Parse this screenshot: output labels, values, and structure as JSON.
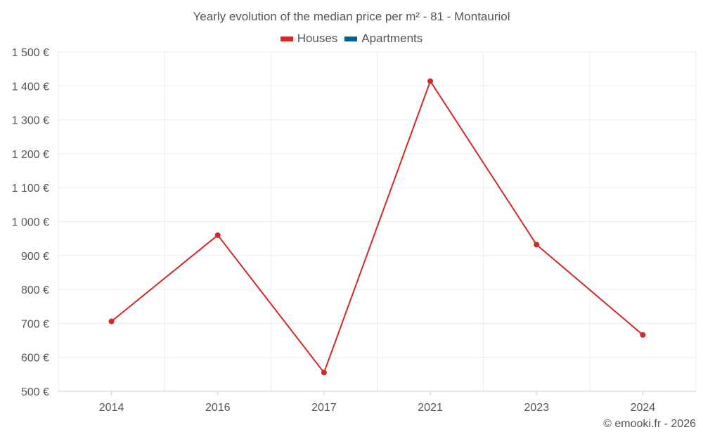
{
  "chart_data": {
    "type": "line",
    "title": "Yearly evolution of the median price per m² - 81 - Montauriol",
    "categories": [
      "2014",
      "2016",
      "2017",
      "2021",
      "2023",
      "2024"
    ],
    "series": [
      {
        "name": "Houses",
        "color": "#d62728",
        "values": [
          706,
          960,
          555,
          1414,
          932,
          666
        ]
      },
      {
        "name": "Apartments",
        "color": "#0a5f8f",
        "values": [
          null,
          null,
          null,
          null,
          null,
          null
        ]
      }
    ],
    "ylim": [
      500,
      1500
    ],
    "yticks": [
      500,
      600,
      700,
      800,
      900,
      1000,
      1100,
      1200,
      1300,
      1400,
      1500
    ],
    "ytick_labels": [
      "500 €",
      "600 €",
      "700 €",
      "800 €",
      "900 €",
      "1 000 €",
      "1 100 €",
      "1 200 €",
      "1 300 €",
      "1 400 €",
      "1 500 €"
    ],
    "grid": true,
    "legend_position": "top-center"
  },
  "credit": "© emooki.fr - 2026"
}
